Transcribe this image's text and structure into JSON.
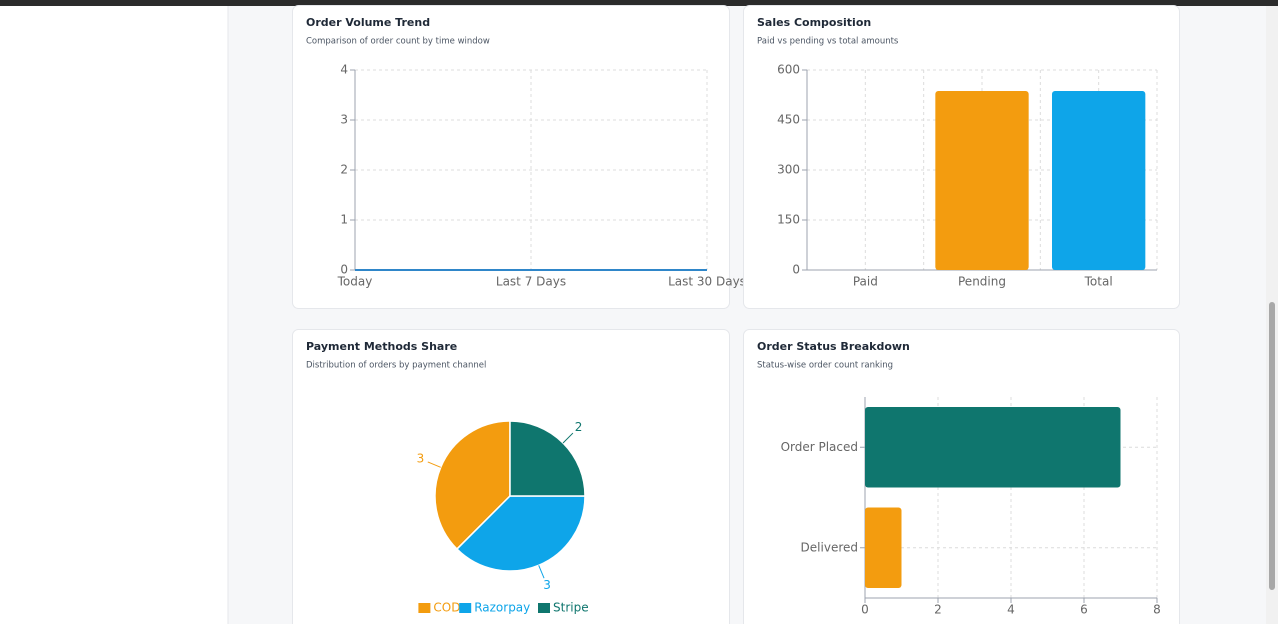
{
  "chart_data": [
    {
      "type": "line",
      "title": "Order Volume Trend",
      "subtitle": "Comparison of order count by time window",
      "categories": [
        "Today",
        "Last 7 Days",
        "Last 30 Days"
      ],
      "values": [
        0,
        0,
        0
      ],
      "color": "#2f86c9",
      "ylim": [
        0,
        4
      ],
      "yticks": [
        0,
        1,
        2,
        3,
        4
      ],
      "grid": true
    },
    {
      "type": "bar",
      "title": "Sales Composition",
      "subtitle": "Paid vs pending vs total amounts",
      "categories": [
        "Paid",
        "Pending",
        "Total"
      ],
      "values": [
        0,
        537,
        537
      ],
      "colors": [
        "#0f766e",
        "#f39c0f",
        "#0ea5e9"
      ],
      "ylim": [
        0,
        600
      ],
      "yticks": [
        0,
        150,
        300,
        450,
        600
      ],
      "grid": true
    },
    {
      "type": "pie",
      "title": "Payment Methods Share",
      "subtitle": "Distribution of orders by payment channel",
      "categories": [
        "COD",
        "Razorpay",
        "Stripe"
      ],
      "values": [
        3,
        3,
        2
      ],
      "colors": [
        "#f39c0f",
        "#0ea5e9",
        "#0f766e"
      ],
      "legend": "bottom"
    },
    {
      "type": "hbar",
      "title": "Order Status Breakdown",
      "subtitle": "Status-wise order count ranking",
      "categories": [
        "Order Placed",
        "Delivered"
      ],
      "values": [
        7,
        1
      ],
      "colors": [
        "#0f766e",
        "#f39c0f"
      ],
      "xlim": [
        0,
        8
      ],
      "xticks": [
        0,
        2,
        4,
        6,
        8
      ],
      "grid": true
    }
  ]
}
